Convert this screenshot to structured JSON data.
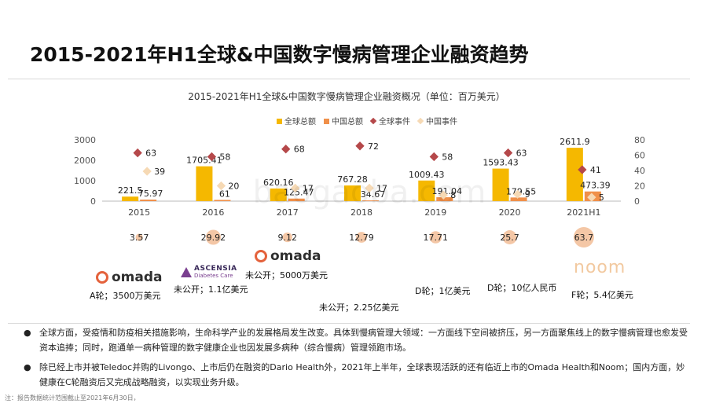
{
  "page": {
    "title": "2015-2021年H1全球&中国数字慢病管理企业融资趋势"
  },
  "chart_data": {
    "type": "bar",
    "title": "2015-2021年H1全球&中国数字慢病管理企业融资概况（单位：百万美元）",
    "categories": [
      "2015",
      "2016",
      "2017",
      "2018",
      "2019",
      "2020",
      "2021H1"
    ],
    "series": [
      {
        "name": "全球总额",
        "kind": "bar",
        "axis": "left",
        "color": "#f5b800",
        "values": [
          221.5,
          1705.41,
          620.16,
          767.28,
          1009.43,
          1593.43,
          2611.9
        ],
        "labels": [
          "221.5",
          "1705.41",
          "620.16",
          "767.28",
          "1009.43",
          "1593.43",
          "2611.9"
        ]
      },
      {
        "name": "中国总额",
        "kind": "bar",
        "axis": "left",
        "color": "#f0904a",
        "values": [
          75.97,
          61,
          125.47,
          34.67,
          191.04,
          179.55,
          473.39
        ],
        "labels": [
          "75.97",
          "61",
          "125.47",
          "34.67",
          "191.04",
          "179.55",
          "473.39"
        ]
      },
      {
        "name": "全球事件",
        "kind": "marker",
        "axis": "right",
        "color": "#b5484a",
        "values": [
          63,
          58,
          68,
          72,
          58,
          63,
          41
        ],
        "labels": [
          "63",
          "58",
          "68",
          "72",
          "58",
          "63",
          "41"
        ]
      },
      {
        "name": "中国事件",
        "kind": "marker",
        "axis": "right",
        "color": "#f6d9b4",
        "values": [
          39,
          20,
          17,
          17,
          8,
          9,
          5
        ],
        "labels": [
          "39",
          "20",
          "17",
          "17",
          "8",
          "9",
          "5"
        ]
      }
    ],
    "left_axis": {
      "min": 0,
      "max": 3000,
      "ticks": [
        "0",
        "1000",
        "2000",
        "3000"
      ]
    },
    "right_axis": {
      "min": 0,
      "max": 80,
      "ticks": [
        "0",
        "20",
        "40",
        "60",
        "80"
      ]
    },
    "ratio_bubbles": {
      "values": [
        3.57,
        29.92,
        9.12,
        12.79,
        17.71,
        25.7,
        63.7
      ],
      "labels": [
        "3.57",
        "29.92",
        "9.12",
        "12.79",
        "17.71",
        "25.7",
        "63.7"
      ],
      "color": "#f4c7a6"
    },
    "legend_position": "top-center",
    "grid": false
  },
  "deals": [
    {
      "text": "A轮；3500万美元",
      "logo": "omada"
    },
    {
      "text": "未公开；1.1亿美元",
      "logo": "ascensia"
    },
    {
      "text": "未公开；5000万美元",
      "logo": "omada"
    },
    {
      "text": "未公开；2.25亿美元",
      "logo": ""
    },
    {
      "text": "D轮；1亿美元",
      "logo": ""
    },
    {
      "text": "D轮；10亿人民币",
      "logo": ""
    },
    {
      "text": "F轮；5.4亿美元",
      "logo": "noom"
    }
  ],
  "logos": {
    "omada_word": "omada",
    "ascensia_line1": "ASCENSIA",
    "ascensia_line2": "Diabetes Care",
    "noom_word": "noom"
  },
  "watermark": "baogaoba.com",
  "bullets": [
    "全球方面，受疫情和防疫相关措施影响，生命科学产业的发展格局发生改变。具体到慢病管理大领域：一方面线下空间被挤压，另一方面聚焦线上的数字慢病管理也愈发受资本追捧；同时，跑通单一病种管理的数字健康企业也因发展多病种（综合慢病）管理领跑市场。",
    "除已经上市并被Teledoc并购的Livongo、上市后仍在融资的Dario Health外，2021年上半年，全球表现活跃的还有临近上市的Omada Health和Noom；国内方面，妙健康在C轮融资后又完成战略融资，以实现业务升级。"
  ],
  "bullet_symbol": "●",
  "footnote": "注：报告数据统计范围截止至2021年6月30日，"
}
